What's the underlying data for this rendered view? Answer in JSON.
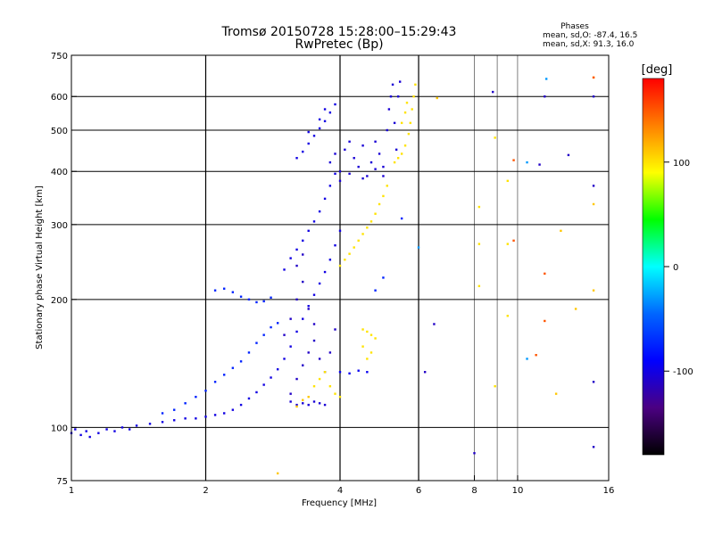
{
  "chart_data": {
    "type": "scatter",
    "title": "Tromsø 20150728 15:28:00–15:29:43",
    "subtitle": "RwPretec (Bp)",
    "xlabel": "Frequency [MHz]",
    "ylabel": "Stationary phase Virtual Height [km]",
    "x_scale": "log",
    "y_scale": "log",
    "xlim": [
      1,
      16
    ],
    "ylim": [
      75,
      750
    ],
    "x_ticks": [
      1,
      2,
      4,
      6,
      8,
      10,
      16
    ],
    "x_tick_labels": [
      "1",
      "2",
      "4",
      "6",
      "8",
      "10",
      "16"
    ],
    "x_grid_major": [
      2,
      4,
      6
    ],
    "x_grid_minor": [
      8,
      9,
      10
    ],
    "y_ticks": [
      75,
      100,
      200,
      300,
      400,
      500,
      600,
      750
    ],
    "y_tick_labels": [
      "75",
      "100",
      "200",
      "300",
      "400",
      "500",
      "600",
      "750"
    ],
    "y_grid": [
      100,
      200,
      300,
      400,
      500,
      600
    ],
    "grid": true,
    "phases_box": {
      "title": "Phases",
      "line_o": "mean, sd,O: -87.4, 16.5",
      "line_x": "mean, sd,X:  91.3, 16.0"
    },
    "colorbar": {
      "label": "[deg]",
      "range": [
        -180,
        180
      ],
      "ticks": [
        100,
        0,
        -100
      ],
      "tick_labels": [
        "100",
        "0",
        "-100"
      ],
      "colors": [
        "#ff0000",
        "#ff8000",
        "#ffff00",
        "#00ff00",
        "#00ffff",
        "#0066ff",
        "#0000ff",
        "#4b0082",
        "#000000"
      ]
    },
    "series": [
      {
        "phase": -100,
        "points": [
          [
            1.0,
            97
          ],
          [
            1.02,
            99
          ],
          [
            1.05,
            96
          ],
          [
            1.08,
            98
          ],
          [
            1.1,
            95
          ],
          [
            1.15,
            97
          ],
          [
            1.2,
            99
          ],
          [
            1.25,
            98
          ],
          [
            1.3,
            100
          ],
          [
            1.35,
            99
          ],
          [
            1.4,
            101
          ],
          [
            1.5,
            102
          ],
          [
            1.6,
            103
          ],
          [
            1.7,
            104
          ],
          [
            1.8,
            105
          ],
          [
            1.9,
            105
          ],
          [
            2.0,
            106
          ],
          [
            2.1,
            107
          ],
          [
            2.2,
            108
          ],
          [
            2.3,
            110
          ],
          [
            2.4,
            113
          ],
          [
            2.5,
            117
          ],
          [
            2.6,
            121
          ],
          [
            2.7,
            126
          ],
          [
            2.8,
            131
          ],
          [
            2.9,
            137
          ],
          [
            3.0,
            145
          ],
          [
            3.1,
            155
          ],
          [
            3.2,
            168
          ],
          [
            3.3,
            180
          ],
          [
            3.4,
            193
          ],
          [
            3.5,
            205
          ],
          [
            3.6,
            218
          ],
          [
            3.7,
            232
          ],
          [
            3.8,
            248
          ],
          [
            3.9,
            268
          ],
          [
            4.0,
            290
          ]
        ]
      },
      {
        "phase": -100,
        "points": [
          [
            3.0,
            235
          ],
          [
            3.1,
            250
          ],
          [
            3.2,
            262
          ],
          [
            3.3,
            275
          ],
          [
            3.4,
            290
          ],
          [
            3.5,
            305
          ],
          [
            3.6,
            322
          ],
          [
            3.7,
            345
          ],
          [
            3.8,
            370
          ],
          [
            3.9,
            395
          ]
        ]
      },
      {
        "phase": -100,
        "points": [
          [
            3.2,
            430
          ],
          [
            3.3,
            445
          ],
          [
            3.4,
            465
          ],
          [
            3.5,
            485
          ],
          [
            3.6,
            505
          ],
          [
            3.7,
            525
          ],
          [
            3.8,
            550
          ],
          [
            3.9,
            575
          ]
        ]
      },
      {
        "phase": -100,
        "points": [
          [
            3.4,
            495
          ],
          [
            3.6,
            530
          ],
          [
            3.7,
            560
          ]
        ]
      },
      {
        "phase": -105,
        "points": [
          [
            3.8,
            420
          ],
          [
            3.9,
            440
          ],
          [
            4.0,
            400
          ],
          [
            4.1,
            450
          ],
          [
            4.2,
            470
          ],
          [
            4.3,
            430
          ],
          [
            4.4,
            410
          ],
          [
            4.5,
            460
          ],
          [
            4.6,
            390
          ],
          [
            4.7,
            420
          ],
          [
            4.8,
            470
          ],
          [
            4.9,
            440
          ],
          [
            5.0,
            410
          ],
          [
            5.1,
            500
          ],
          [
            5.15,
            560
          ],
          [
            5.2,
            600
          ],
          [
            5.25,
            640
          ],
          [
            5.3,
            520
          ],
          [
            5.35,
            450
          ],
          [
            5.4,
            600
          ],
          [
            5.45,
            650
          ],
          [
            4.0,
            380
          ],
          [
            4.2,
            395
          ],
          [
            4.5,
            385
          ],
          [
            4.8,
            405
          ],
          [
            5.0,
            390
          ]
        ]
      },
      {
        "phase": -110,
        "points": [
          [
            3.1,
            120
          ],
          [
            3.2,
            130
          ],
          [
            3.3,
            140
          ],
          [
            3.4,
            150
          ],
          [
            3.5,
            160
          ],
          [
            3.6,
            145
          ],
          [
            3.7,
            135
          ],
          [
            3.8,
            150
          ],
          [
            3.9,
            170
          ],
          [
            3.1,
            180
          ],
          [
            3.2,
            200
          ],
          [
            3.3,
            220
          ],
          [
            3.4,
            190
          ],
          [
            3.5,
            175
          ],
          [
            3.0,
            165
          ],
          [
            3.2,
            240
          ],
          [
            3.3,
            255
          ]
        ]
      },
      {
        "phase": -105,
        "points": [
          [
            3.1,
            115
          ],
          [
            3.2,
            113
          ],
          [
            3.3,
            114
          ],
          [
            3.4,
            113
          ],
          [
            3.5,
            115
          ],
          [
            3.6,
            114
          ],
          [
            3.7,
            113
          ]
        ]
      },
      {
        "phase": -95,
        "points": [
          [
            4.0,
            135
          ],
          [
            4.2,
            134
          ],
          [
            4.4,
            136
          ],
          [
            4.6,
            135
          ]
        ]
      },
      {
        "phase": -75,
        "points": [
          [
            2.1,
            210
          ],
          [
            2.2,
            212
          ],
          [
            2.3,
            208
          ],
          [
            2.4,
            203
          ],
          [
            2.5,
            200
          ],
          [
            2.6,
            197
          ],
          [
            2.7,
            198
          ],
          [
            2.8,
            202
          ]
        ]
      },
      {
        "phase": -75,
        "points": [
          [
            1.6,
            108
          ],
          [
            1.7,
            110
          ],
          [
            1.8,
            114
          ],
          [
            1.9,
            118
          ],
          [
            2.0,
            122
          ],
          [
            2.1,
            128
          ],
          [
            2.2,
            133
          ],
          [
            2.3,
            138
          ],
          [
            2.4,
            143
          ],
          [
            2.5,
            150
          ],
          [
            2.6,
            158
          ],
          [
            2.7,
            165
          ],
          [
            2.8,
            172
          ],
          [
            2.9,
            176
          ]
        ]
      },
      {
        "phase": 100,
        "points": [
          [
            4.0,
            240
          ],
          [
            4.1,
            248
          ],
          [
            4.2,
            256
          ],
          [
            4.3,
            265
          ],
          [
            4.4,
            275
          ],
          [
            4.5,
            285
          ],
          [
            4.6,
            295
          ],
          [
            4.7,
            305
          ],
          [
            4.8,
            318
          ],
          [
            4.9,
            335
          ],
          [
            5.0,
            350
          ],
          [
            5.1,
            370
          ]
        ]
      },
      {
        "phase": 100,
        "points": [
          [
            5.3,
            420
          ],
          [
            5.4,
            430
          ],
          [
            5.5,
            440
          ],
          [
            5.6,
            460
          ],
          [
            5.7,
            490
          ],
          [
            5.75,
            520
          ],
          [
            5.8,
            560
          ],
          [
            5.85,
            600
          ],
          [
            5.9,
            640
          ],
          [
            5.5,
            520
          ],
          [
            5.6,
            550
          ],
          [
            5.65,
            580
          ]
        ]
      },
      {
        "phase": 100,
        "points": [
          [
            3.5,
            125
          ],
          [
            3.6,
            130
          ],
          [
            3.7,
            135
          ],
          [
            3.8,
            125
          ],
          [
            3.9,
            120
          ],
          [
            4.0,
            118
          ]
        ]
      },
      {
        "phase": 100,
        "points": [
          [
            4.5,
            170
          ],
          [
            4.6,
            168
          ],
          [
            4.7,
            165
          ],
          [
            4.8,
            162
          ],
          [
            4.5,
            155
          ],
          [
            4.7,
            150
          ],
          [
            4.6,
            145
          ]
        ]
      },
      {
        "phase": 110,
        "points": [
          [
            3.2,
            112
          ],
          [
            3.3,
            116
          ],
          [
            3.4,
            118
          ]
        ]
      },
      {
        "phase": 100,
        "points": [
          [
            8.2,
            330
          ],
          [
            8.2,
            270
          ],
          [
            8.2,
            215
          ],
          [
            8.9,
            480
          ],
          [
            9.5,
            380
          ],
          [
            9.5,
            183
          ],
          [
            9.5,
            270
          ],
          [
            8.9,
            125
          ]
        ]
      },
      {
        "phase": 110,
        "points": [
          [
            12.5,
            290
          ],
          [
            13.5,
            190
          ],
          [
            14.8,
            665
          ],
          [
            14.8,
            210
          ],
          [
            14.8,
            335
          ],
          [
            12.2,
            120
          ],
          [
            6.6,
            595
          ],
          [
            2.9,
            78
          ]
        ]
      },
      {
        "phase": 150,
        "points": [
          [
            9.8,
            425
          ],
          [
            9.8,
            275
          ],
          [
            11.5,
            230
          ],
          [
            11.5,
            178
          ],
          [
            14.8,
            665
          ],
          [
            11.0,
            148
          ]
        ]
      },
      {
        "phase": -110,
        "points": [
          [
            6.5,
            175
          ],
          [
            8.0,
            87
          ],
          [
            8.8,
            615
          ],
          [
            11.5,
            600
          ],
          [
            14.8,
            600
          ],
          [
            14.8,
            370
          ],
          [
            14.8,
            128
          ],
          [
            14.8,
            90
          ],
          [
            11.2,
            415
          ],
          [
            13.0,
            437
          ],
          [
            6.2,
            135
          ]
        ]
      },
      {
        "phase": -30,
        "points": [
          [
            11.6,
            660
          ],
          [
            10.5,
            420
          ],
          [
            6.0,
            265
          ],
          [
            10.5,
            145
          ]
        ]
      },
      {
        "phase": -75,
        "points": [
          [
            4.8,
            210
          ],
          [
            5.0,
            225
          ],
          [
            5.5,
            310
          ]
        ]
      }
    ]
  }
}
